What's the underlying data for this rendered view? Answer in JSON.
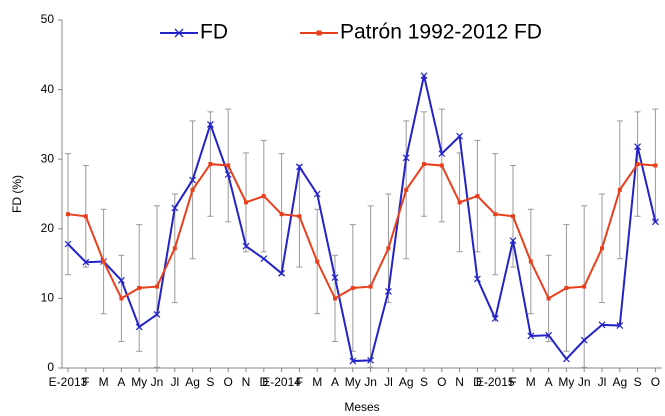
{
  "chart_data": {
    "type": "line",
    "y_label": "FD (%)",
    "x_label": "Meses",
    "categories": [
      "E-2013",
      "F",
      "M",
      "A",
      "My",
      "Jn",
      "Jl",
      "Ag",
      "S",
      "O",
      "N",
      "D",
      "E-2014",
      "F",
      "M",
      "A",
      "My",
      "Jn",
      "Jl",
      "Ag",
      "S",
      "O",
      "N",
      "D",
      "E-2015",
      "F",
      "M",
      "A",
      "My",
      "Jn",
      "Jl",
      "Ag",
      "S",
      "O"
    ],
    "ylim": [
      0,
      50
    ],
    "yticks": [
      0,
      10,
      20,
      30,
      40,
      50
    ],
    "grid": false,
    "series": [
      {
        "name": "FD",
        "color": "#2323c8",
        "marker": "x",
        "values": [
          17.8,
          15.2,
          15.3,
          12.6,
          5.9,
          7.7,
          23.0,
          27.0,
          35.0,
          27.8,
          17.5,
          15.7,
          13.6,
          28.9,
          25.0,
          13.0,
          1.0,
          1.1,
          11.0,
          30.2,
          42.0,
          30.8,
          33.3,
          12.8,
          7.1,
          18.3,
          4.6,
          4.7,
          1.3,
          4.0,
          6.2,
          6.1,
          31.8,
          21.0
        ]
      },
      {
        "name": "Patrón 1992-2012 FD",
        "color": "#e8401c",
        "marker": "square",
        "values": [
          22.1,
          21.8,
          15.3,
          10.0,
          11.5,
          11.7,
          17.2,
          25.6,
          29.3,
          29.1,
          23.8,
          24.7,
          22.1,
          21.8,
          15.3,
          10.0,
          11.5,
          11.7,
          17.2,
          25.6,
          29.3,
          29.1,
          23.8,
          24.7,
          22.1,
          21.8,
          15.3,
          10.0,
          11.5,
          11.7,
          17.2,
          25.6,
          29.3,
          29.1
        ],
        "errors": [
          8.7,
          7.3,
          7.5,
          6.2,
          9.1,
          11.6,
          7.8,
          9.9,
          7.5,
          8.1,
          7.1,
          8.0,
          8.7,
          7.3,
          7.5,
          6.2,
          9.1,
          11.6,
          7.8,
          9.9,
          7.5,
          8.1,
          7.1,
          8.0,
          8.7,
          7.3,
          7.5,
          6.2,
          9.1,
          11.6,
          7.8,
          9.9,
          7.5,
          8.1
        ]
      }
    ]
  }
}
